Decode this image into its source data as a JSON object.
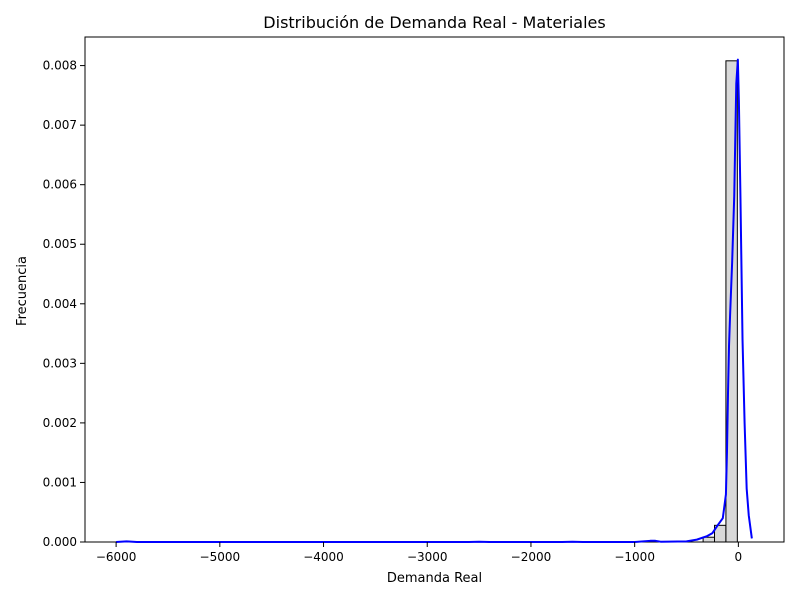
{
  "chart_data": {
    "type": "bar",
    "title": "Distribución de Demanda Real - Materiales",
    "xlabel": "Demanda Real",
    "ylabel": "Frecuencia",
    "xlim": [
      -6300,
      440
    ],
    "ylim": [
      0,
      0.00848
    ],
    "x_ticks": [
      -6000,
      -5000,
      -4000,
      -3000,
      -2000,
      -1000,
      0
    ],
    "x_tick_labels": [
      "−6000",
      "−5000",
      "−4000",
      "−3000",
      "−2000",
      "−1000",
      "0"
    ],
    "y_ticks": [
      0,
      0.001,
      0.002,
      0.003,
      0.004,
      0.005,
      0.006,
      0.007,
      0.008
    ],
    "y_tick_labels": [
      "0.000",
      "0.001",
      "0.002",
      "0.003",
      "0.004",
      "0.005",
      "0.006",
      "0.007",
      "0.008"
    ],
    "grid": false,
    "histogram": {
      "bin_edges": [
        -340,
        -230,
        -120,
        -10,
        110
      ],
      "values": [
        8e-05,
        0.00028,
        0.00808,
        0.0
      ],
      "fill": "#d9d9d9",
      "edge": "#000000"
    },
    "kde": {
      "color": "#0000ff",
      "x": [
        -6000,
        -5900,
        -5800,
        -5600,
        -5000,
        -4500,
        -4000,
        -3500,
        -3000,
        -2600,
        -2500,
        -2400,
        -2000,
        -1700,
        -1600,
        -1500,
        -1200,
        -1000,
        -850,
        -800,
        -750,
        -500,
        -400,
        -300,
        -250,
        -200,
        -150,
        -120,
        -110,
        -100,
        -90,
        -80,
        -60,
        -40,
        -20,
        -5,
        5,
        20,
        40,
        60,
        80,
        100,
        130
      ],
      "y": [
        0,
        1e-05,
        0,
        0,
        0,
        0,
        0,
        0,
        0,
        0,
        5e-06,
        0,
        0,
        0,
        5e-06,
        0,
        0,
        0,
        2e-05,
        2e-05,
        5e-06,
        1e-05,
        4e-05,
        0.0001,
        0.00015,
        0.00028,
        0.0004,
        0.0008,
        0.0015,
        0.0025,
        0.0033,
        0.0038,
        0.0047,
        0.0058,
        0.0077,
        0.0081,
        0.0074,
        0.0058,
        0.0034,
        0.002,
        0.0009,
        0.00045,
        6e-05
      ]
    }
  }
}
